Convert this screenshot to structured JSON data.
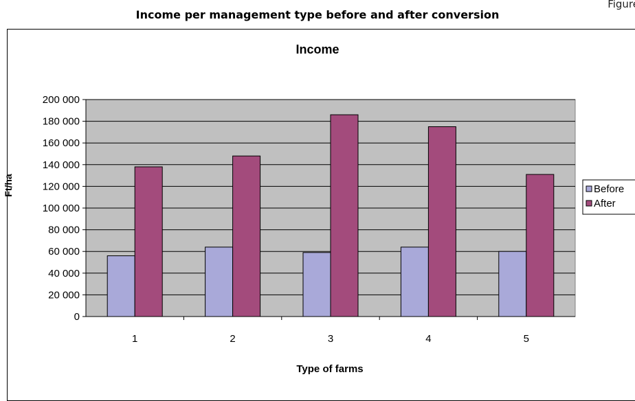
{
  "figure": {
    "corner_label": "Figure",
    "caption": "Income per management type before and after conversion"
  },
  "chart_data": {
    "type": "bar",
    "title": "Income",
    "xlabel": "Type of farms",
    "ylabel": "Ft/ha",
    "categories": [
      "1",
      "2",
      "3",
      "4",
      "5"
    ],
    "series": [
      {
        "name": "Before",
        "values": [
          56000,
          64000,
          59000,
          64000,
          60000
        ],
        "color": "#a9a9d9"
      },
      {
        "name": "After",
        "values": [
          138000,
          148000,
          186000,
          175000,
          131000
        ],
        "color": "#a34b7c"
      }
    ],
    "ylim": [
      0,
      200000
    ],
    "ytick_step": 20000,
    "ytick_labels": [
      "0",
      "20 000",
      "40 000",
      "60 000",
      "80 000",
      "100 000",
      "120 000",
      "140 000",
      "160 000",
      "180 000",
      "200 000"
    ],
    "grid": true,
    "plot_background": "#c0c0c0",
    "legend_position": "right"
  }
}
